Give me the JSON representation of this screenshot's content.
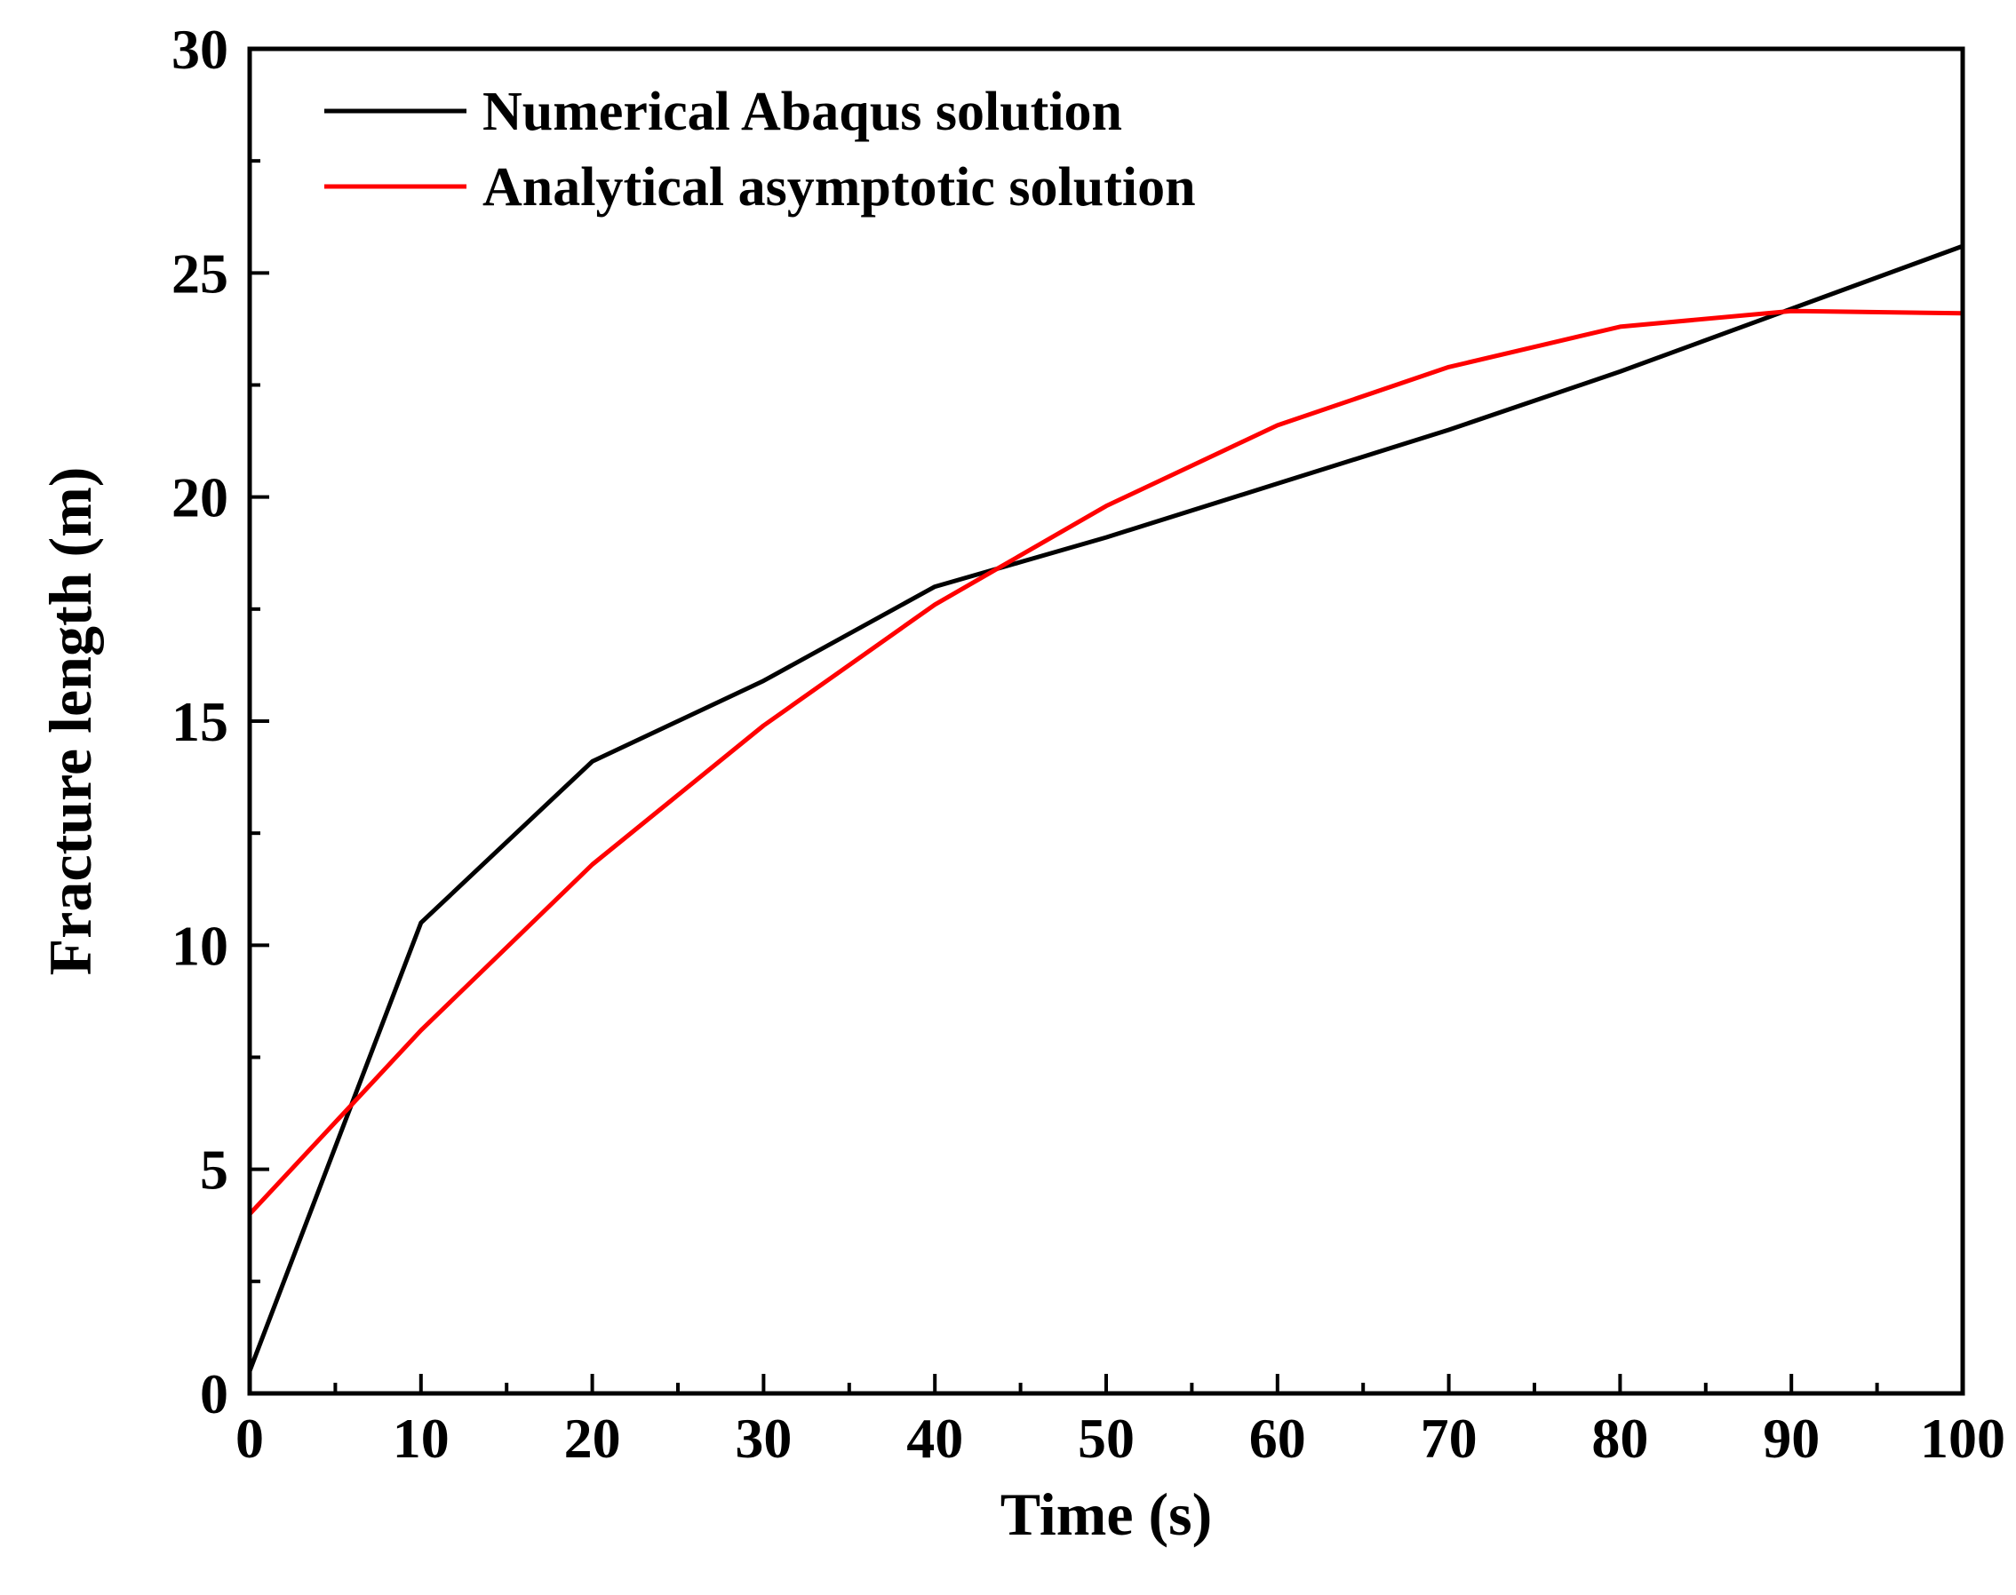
{
  "chart_data": {
    "type": "line",
    "title": "",
    "xlabel": "Time (s)",
    "ylabel": "Fracture length (m)",
    "xlim": [
      0,
      100
    ],
    "ylim": [
      0,
      30
    ],
    "xticks": [
      0,
      10,
      20,
      30,
      40,
      50,
      60,
      70,
      80,
      90,
      100
    ],
    "xtick_labels": [
      "0",
      "10",
      "20",
      "30",
      "40",
      "50",
      "60",
      "70",
      "80",
      "90",
      "100"
    ],
    "yticks": [
      0,
      5,
      10,
      15,
      20,
      25,
      30
    ],
    "ytick_labels": [
      "0",
      "5",
      "10",
      "15",
      "20",
      "25",
      "30"
    ],
    "grid": false,
    "legend_position": "top-left",
    "series": [
      {
        "name": "Numerical Abaqus solution",
        "color": "#000000",
        "x": [
          0,
          10,
          20,
          30,
          40,
          50,
          60,
          70,
          80,
          90,
          100
        ],
        "y": [
          0.5,
          10.5,
          14.1,
          15.9,
          18.0,
          19.1,
          20.3,
          21.5,
          22.8,
          24.2,
          25.6
        ]
      },
      {
        "name": "Analytical asymptotic solution",
        "color": "#ff0000",
        "x": [
          0,
          10,
          20,
          30,
          40,
          50,
          60,
          70,
          80,
          90,
          100
        ],
        "y": [
          4.0,
          8.1,
          11.8,
          14.9,
          17.6,
          19.8,
          21.6,
          22.9,
          23.8,
          24.15,
          24.1
        ]
      }
    ]
  }
}
